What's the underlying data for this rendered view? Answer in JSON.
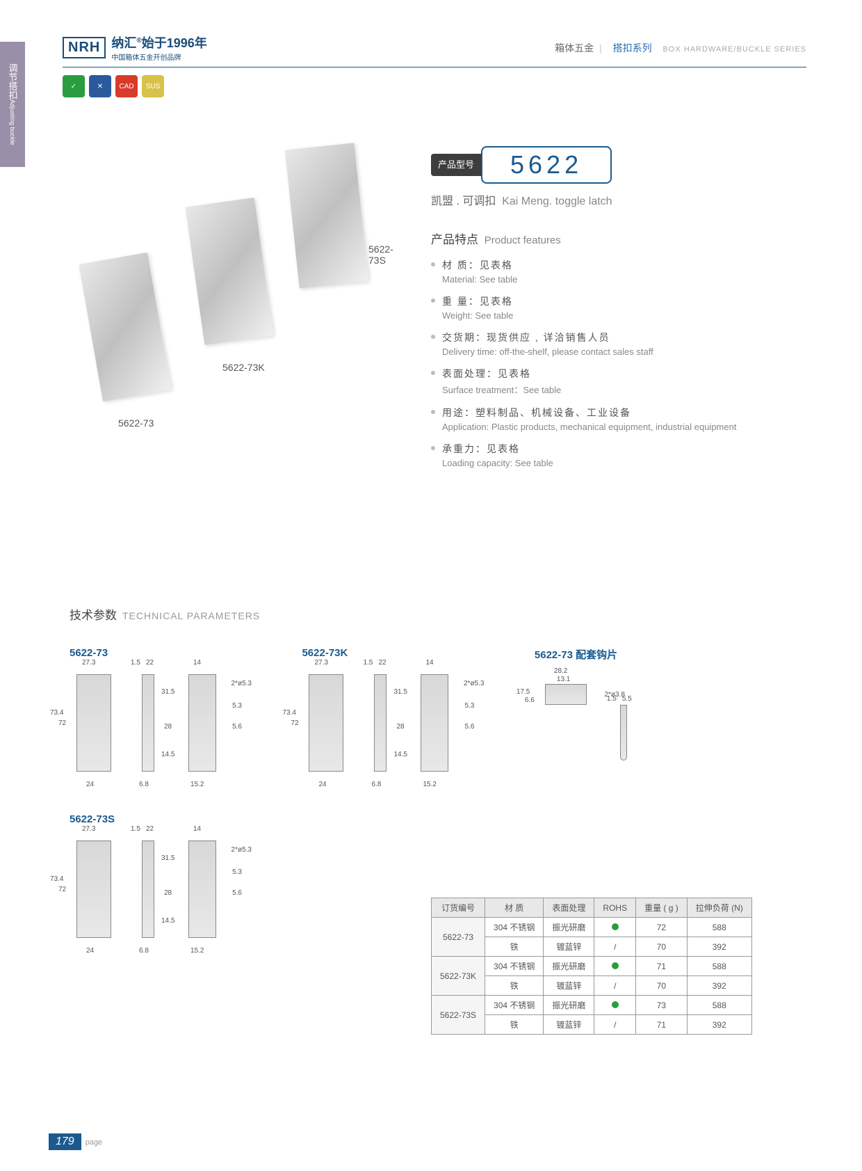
{
  "sideTab": {
    "cn": "调节搭扣",
    "en": "Adjusting buckle"
  },
  "logo": {
    "brand": "NRH",
    "cn": "纳汇",
    "year": "始于1996年",
    "sub": "中国箱体五金开创品牌"
  },
  "headerRight": {
    "cn1": "箱体五金",
    "cn2": "搭扣系列",
    "en": "BOX HARDWARE/BUCKLE SERIES"
  },
  "iconBadges": [
    {
      "bg": "#2a9d3e",
      "label": "✓"
    },
    {
      "bg": "#2a5a9d",
      "label": "✕"
    },
    {
      "bg": "#d93a2a",
      "label": "CAD"
    },
    {
      "bg": "#d9c24a",
      "label": "SUS"
    }
  ],
  "productLabels": {
    "p1": "5622-73",
    "p2": "5622-73K",
    "p3": "5622-73S"
  },
  "model": {
    "tagCn": "产品型号",
    "number": "5622",
    "subCn": "凯盟 . 可调扣",
    "subEn": "Kai Meng. toggle latch"
  },
  "featuresTitle": {
    "cn": "产品特点",
    "en": "Product features"
  },
  "features": [
    {
      "cn": "材  质：见表格",
      "en": "Material: See table"
    },
    {
      "cn": "重  量：见表格",
      "en": "Weight: See table"
    },
    {
      "cn": "交货期：现货供应 , 详洽销售人员",
      "en": "Delivery time: off-the-shelf, please contact sales staff"
    },
    {
      "cn": "表面处理：见表格",
      "en": "Surface treatment：See table"
    },
    {
      "cn": "用途：塑料制品、机械设备、工业设备",
      "en": "Application: Plastic products, mechanical equipment, industrial equipment"
    },
    {
      "cn": "承重力：见表格",
      "en": "Loading capacity: See table"
    }
  ],
  "techTitle": {
    "cn": "技术参数",
    "en": "TECHNICAL PARAMETERS"
  },
  "diagramGroups": [
    {
      "label": "5622-73"
    },
    {
      "label": "5622-73K"
    },
    {
      "label": "5622-73 配套钩片"
    },
    {
      "label": "5622-73S"
    }
  ],
  "dimensions": {
    "w1": "27.3",
    "t": "1.5",
    "w2": "22",
    "w3": "14",
    "h1": "73.4",
    "h2": "72",
    "h3": "31.5",
    "h4": "28",
    "h5": "14.5",
    "b1": "24",
    "b2": "6.8",
    "b3": "15.2",
    "hole": "2*ø5.3",
    "d1": "5.3",
    "d2": "5.6",
    "hook_w": "28.2",
    "hook_w2": "13.1",
    "hook_h": "17.5",
    "hook_h2": "6.6",
    "hook_hole": "2*ø3.8",
    "hook_t1": "1.5",
    "hook_t2": "5.5"
  },
  "table": {
    "headers": [
      "订货编号",
      "材  质",
      "表面处理",
      "ROHS",
      "重量 ( g )",
      "拉伸负荷 (N)"
    ],
    "rows": [
      {
        "code": "5622-73",
        "mat": "304 不锈钢",
        "surf": "振光研磨",
        "rohs": true,
        "wt": "72",
        "load": "588"
      },
      {
        "code": "",
        "mat": "铁",
        "surf": "镀蓝锌",
        "rohs": false,
        "wt": "70",
        "load": "392"
      },
      {
        "code": "5622-73K",
        "mat": "304 不锈钢",
        "surf": "振光研磨",
        "rohs": true,
        "wt": "71",
        "load": "588"
      },
      {
        "code": "",
        "mat": "铁",
        "surf": "镀蓝锌",
        "rohs": false,
        "wt": "70",
        "load": "392"
      },
      {
        "code": "5622-73S",
        "mat": "304 不锈钢",
        "surf": "振光研磨",
        "rohs": true,
        "wt": "73",
        "load": "588"
      },
      {
        "code": "",
        "mat": "铁",
        "surf": "镀蓝锌",
        "rohs": false,
        "wt": "71",
        "load": "392"
      }
    ]
  },
  "pageNum": "179",
  "pageLabel": "page"
}
